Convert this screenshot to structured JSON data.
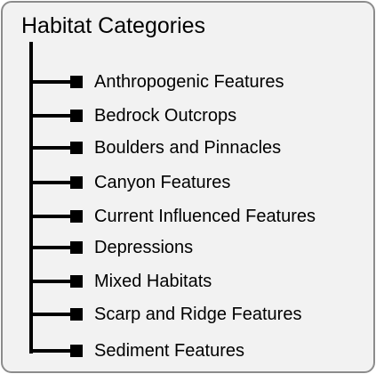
{
  "title": "Habitat Categories",
  "colors": {
    "panel_background": "#f2f2f2",
    "panel_border": "#8c8c8c",
    "connector": "#000000",
    "marker": "#000000"
  },
  "items": [
    {
      "label": "Anthropogenic Features"
    },
    {
      "label": "Bedrock Outcrops"
    },
    {
      "label": "Boulders and Pinnacles"
    },
    {
      "label": "Canyon Features"
    },
    {
      "label": "Current Influenced Features"
    },
    {
      "label": "Depressions"
    },
    {
      "label": "Mixed Habitats"
    },
    {
      "label": "Scarp and Ridge Features"
    },
    {
      "label": "Sediment Features"
    }
  ]
}
